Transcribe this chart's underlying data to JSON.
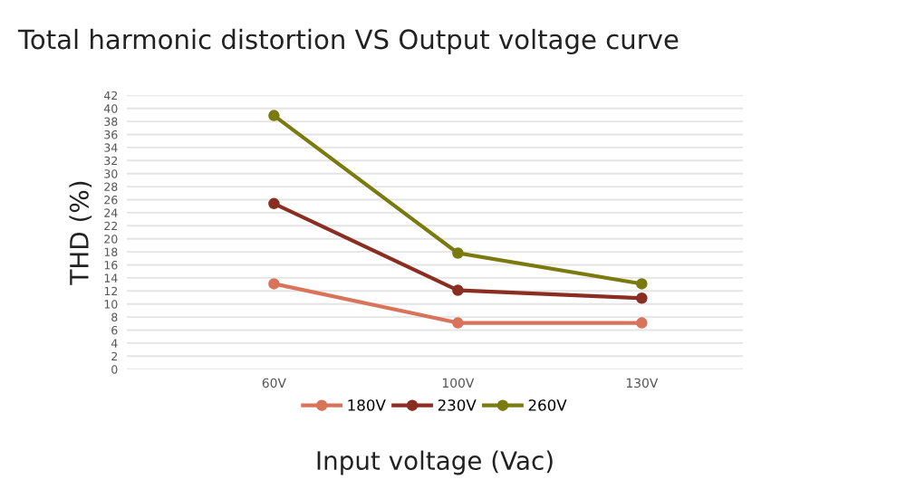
{
  "chart_data": {
    "type": "line",
    "title": "Total harmonic distortion VS Output voltage curve",
    "xlabel": "Input voltage (Vac)",
    "ylabel": "THD (%)",
    "categories": [
      "60V",
      "100V",
      "130V"
    ],
    "series": [
      {
        "name": "180V",
        "color": "#d9735a",
        "values": [
          13.1,
          7.1,
          7.1
        ]
      },
      {
        "name": "230V",
        "color": "#8b2e22",
        "values": [
          25.4,
          12.1,
          10.9
        ]
      },
      {
        "name": "260V",
        "color": "#7a7a10",
        "values": [
          38.9,
          17.8,
          13.1
        ]
      }
    ],
    "ylim": [
      0,
      42
    ],
    "yticks": [
      0,
      2,
      4,
      6,
      8,
      10,
      12,
      14,
      16,
      18,
      20,
      22,
      24,
      26,
      28,
      30,
      32,
      34,
      36,
      38,
      40,
      42
    ],
    "grid": "y",
    "legend": "bottom",
    "marker": "circle",
    "line_style": "solid"
  }
}
